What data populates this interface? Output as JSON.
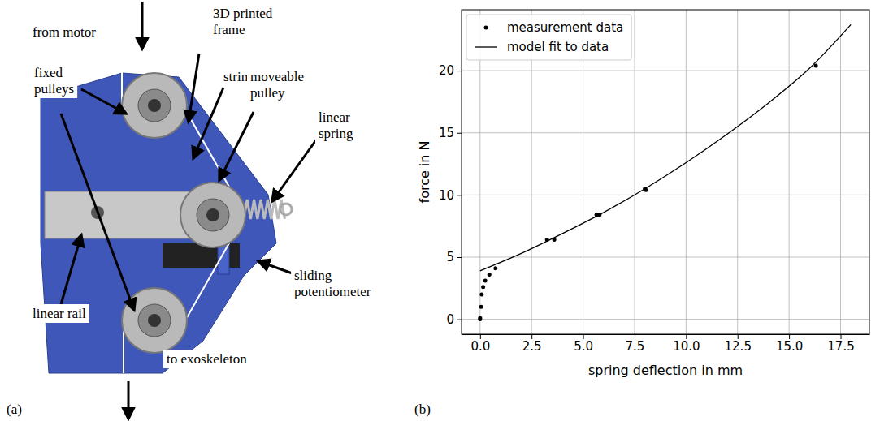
{
  "panel_labels": [
    "(a)",
    "(b)"
  ],
  "photo_panel": {
    "labels": [
      "from motor",
      "3D printed frame",
      "fixed pulleys",
      "string",
      "moveable pulley",
      "linear spring",
      "linear rail",
      "sliding potentiometer",
      "to exoskeleton"
    ]
  },
  "chart_data": {
    "type": "scatter",
    "xlabel": "spring deflection in mm",
    "ylabel": "force in N",
    "xlim": [
      -0.9,
      18.9
    ],
    "ylim": [
      -1.2,
      24.9
    ],
    "xticks": [
      {
        "value": 0,
        "label": "0.0"
      },
      2.5,
      {
        "value": 5,
        "label": "5.0"
      },
      7.5,
      {
        "value": 10,
        "label": "10.0"
      },
      12.5,
      {
        "value": 15,
        "label": "15.0"
      },
      17.5
    ],
    "yticks": [
      0,
      5,
      10,
      15,
      20
    ],
    "grid": true,
    "legend": "upper left",
    "series": [
      {
        "name": "measurement data",
        "type": "scatter",
        "color": "#000000",
        "marker": "circle",
        "x": [
          0,
          0,
          0.05,
          0.08,
          0.15,
          0.25,
          0.45,
          0.75,
          3.25,
          3.6,
          5.65,
          5.8,
          8.0,
          8.05,
          16.3
        ],
        "values": [
          0,
          0.1,
          1.0,
          2.0,
          2.6,
          3.1,
          3.6,
          4.1,
          6.4,
          6.4,
          8.4,
          8.4,
          10.5,
          10.4,
          20.4
        ]
      },
      {
        "name": "model fit to data",
        "type": "line",
        "color": "#000000",
        "line_style": "solid",
        "x": [
          0,
          2,
          4,
          6,
          8,
          10,
          12,
          14,
          16,
          18
        ],
        "values": [
          3.9,
          5.3,
          6.9,
          8.6,
          10.5,
          12.6,
          14.9,
          17.4,
          20.2,
          23.7
        ]
      }
    ]
  }
}
